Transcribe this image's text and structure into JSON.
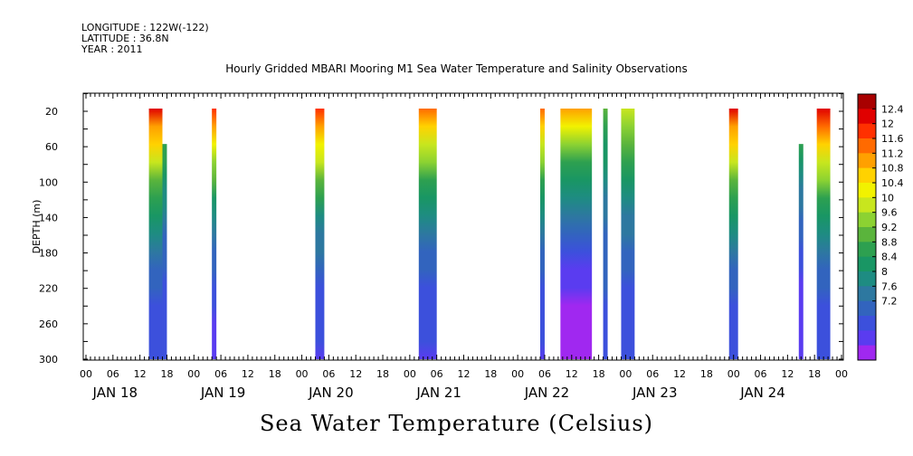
{
  "header": {
    "longitude": "LONGITUDE : 122W(-122)",
    "latitude": "LATITUDE : 36.8N",
    "year": "YEAR : 2011",
    "title": "Hourly Gridded MBARI Mooring M1 Sea Water Temperature and Salinity Observations"
  },
  "footer": {
    "label": "Sea Water Temperature (Celsius)"
  },
  "chart_data": {
    "type": "heatmap",
    "title": "Hourly Gridded MBARI Mooring M1 Sea Water Temperature and Salinity Observations",
    "xlabel": "",
    "ylabel": "DEPTH (m)",
    "colorbar_label": "Sea Water Temperature (Celsius)",
    "x_unit": "hours since JAN 18 00",
    "xlim": [
      0,
      168
    ],
    "ylim": [
      300,
      0
    ],
    "y_ticks": [
      20,
      60,
      100,
      140,
      180,
      220,
      260,
      300
    ],
    "x_hour_ticks": [
      "00",
      "06",
      "12",
      "18",
      "00",
      "06",
      "12",
      "18",
      "00",
      "06",
      "12",
      "18",
      "00",
      "06",
      "12",
      "18",
      "00",
      "06",
      "12",
      "18",
      "00",
      "06",
      "12",
      "18",
      "00",
      "06",
      "12",
      "18",
      "00"
    ],
    "x_day_labels": [
      "JAN 18",
      "JAN 19",
      "JAN 20",
      "JAN 21",
      "JAN 22",
      "JAN 23",
      "JAN 24"
    ],
    "colorbar_ticks": [
      "12.4",
      "12",
      "11.6",
      "11.2",
      "10.8",
      "10.4",
      "10",
      "9.6",
      "9.2",
      "8.8",
      "8.4",
      "8",
      "7.6",
      "7.2"
    ],
    "colorbar_colors": [
      "#a80000",
      "#e00000",
      "#ff3000",
      "#ff6a00",
      "#ffa000",
      "#ffd200",
      "#f2f200",
      "#c8e61e",
      "#8cd232",
      "#5ab43c",
      "#2da050",
      "#199664",
      "#1e8c82",
      "#2d78a0",
      "#3264be",
      "#3c50dc",
      "#5a3cf0",
      "#a028f0"
    ],
    "observation_blocks": [
      {
        "start": 14.0,
        "end": 17.0,
        "top": 20,
        "bottom": 300,
        "surface_temp": 12.0,
        "bottom_temp": 7.9
      },
      {
        "start": 17.0,
        "end": 18.0,
        "top": 60,
        "bottom": 300,
        "surface_temp": 9.6,
        "bottom_temp": 7.9
      },
      {
        "start": 28.0,
        "end": 29.0,
        "top": 20,
        "bottom": 300,
        "surface_temp": 11.8,
        "bottom_temp": 7.7
      },
      {
        "start": 51.0,
        "end": 53.0,
        "top": 20,
        "bottom": 300,
        "surface_temp": 11.9,
        "bottom_temp": 7.8
      },
      {
        "start": 74.0,
        "end": 78.0,
        "top": 20,
        "bottom": 300,
        "surface_temp": 11.4,
        "bottom_temp": 7.8
      },
      {
        "start": 101.0,
        "end": 102.0,
        "top": 20,
        "bottom": 300,
        "surface_temp": 11.5,
        "bottom_temp": 7.8
      },
      {
        "start": 105.5,
        "end": 112.5,
        "top": 20,
        "bottom": 300,
        "surface_temp": 11.2,
        "bottom_temp": 7.3
      },
      {
        "start": 115.0,
        "end": 116.0,
        "top": 20,
        "bottom": 300,
        "surface_temp": 9.7,
        "bottom_temp": 8.0
      },
      {
        "start": 119.0,
        "end": 122.0,
        "top": 20,
        "bottom": 300,
        "surface_temp": 10.4,
        "bottom_temp": 7.9
      },
      {
        "start": 143.0,
        "end": 145.0,
        "top": 20,
        "bottom": 300,
        "surface_temp": 12.0,
        "bottom_temp": 7.9
      },
      {
        "start": 158.5,
        "end": 159.5,
        "top": 60,
        "bottom": 300,
        "surface_temp": 9.4,
        "bottom_temp": 7.6
      },
      {
        "start": 162.5,
        "end": 165.5,
        "top": 20,
        "bottom": 300,
        "surface_temp": 12.2,
        "bottom_temp": 7.9
      }
    ]
  }
}
